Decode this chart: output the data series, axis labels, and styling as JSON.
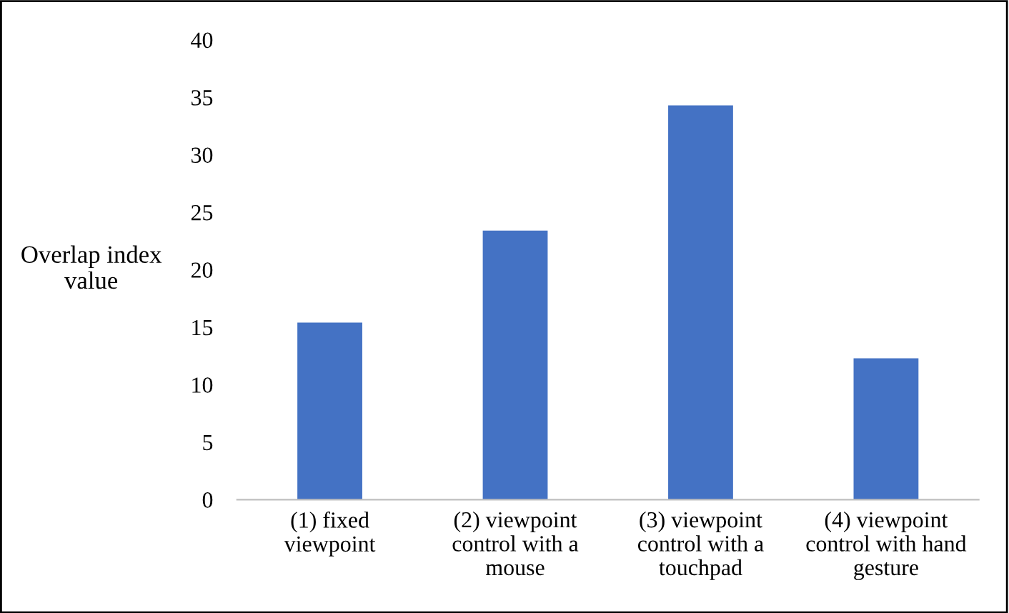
{
  "chart_data": {
    "type": "bar",
    "ylabel": "Overlap index\nvalue",
    "categories": [
      "(1) fixed\nviewpoint",
      "(2) viewpoint\ncontrol with a\nmouse",
      "(3) viewpoint\ncontrol with a\ntouchpad",
      "(4) viewpoint\ncontrol with hand\ngesture"
    ],
    "values": [
      15.4,
      23.4,
      34.3,
      12.3
    ],
    "color": "#4472c4",
    "ylim": [
      0,
      40
    ],
    "yticks": [
      0,
      5,
      10,
      15,
      20,
      25,
      30,
      35,
      40
    ],
    "grid": false
  }
}
